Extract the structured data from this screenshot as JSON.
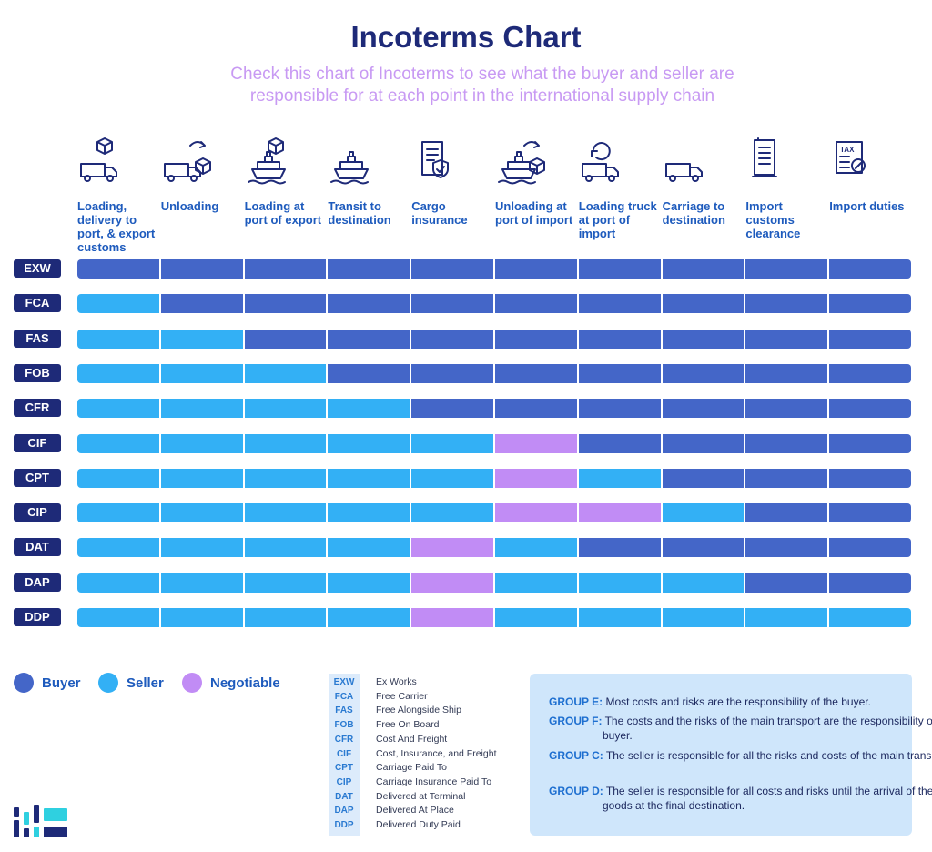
{
  "header": {
    "title": "Incoterms Chart",
    "subtitle_line1": "Check this chart of Incoterms to see what the buyer and seller are",
    "subtitle_line2": "responsible for at each point in the international supply chain"
  },
  "colors": {
    "buyer": "#4466c8",
    "seller": "#33b0f5",
    "negotiable": "#c18cf5",
    "navy": "#1e2a78"
  },
  "chart_data": {
    "type": "table",
    "title": "Incoterms Chart",
    "columns": [
      {
        "label": "Loading, delivery to port, & export customs",
        "icon": "truck-with-box-icon"
      },
      {
        "label": "Unloading",
        "icon": "truck-unloading-box-icon"
      },
      {
        "label": "Loading at port of export",
        "icon": "ship-with-box-icon"
      },
      {
        "label": "Transit to destination",
        "icon": "ship-icon"
      },
      {
        "label": "Cargo insurance",
        "icon": "insurance-document-icon"
      },
      {
        "label": "Unloading at port of import",
        "icon": "ship-unloading-box-icon"
      },
      {
        "label": "Loading truck at port of import",
        "icon": "truck-refresh-icon"
      },
      {
        "label": "Carriage to destination",
        "icon": "delivery-truck-icon"
      },
      {
        "label": "Import customs clearance",
        "icon": "customs-document-icon"
      },
      {
        "label": "Import duties",
        "icon": "tax-document-icon"
      }
    ],
    "rows": [
      {
        "term": "EXW",
        "cells": [
          "buyer",
          "buyer",
          "buyer",
          "buyer",
          "buyer",
          "buyer",
          "buyer",
          "buyer",
          "buyer",
          "buyer"
        ]
      },
      {
        "term": "FCA",
        "cells": [
          "seller",
          "buyer",
          "buyer",
          "buyer",
          "buyer",
          "buyer",
          "buyer",
          "buyer",
          "buyer",
          "buyer"
        ]
      },
      {
        "term": "FAS",
        "cells": [
          "seller",
          "seller",
          "buyer",
          "buyer",
          "buyer",
          "buyer",
          "buyer",
          "buyer",
          "buyer",
          "buyer"
        ]
      },
      {
        "term": "FOB",
        "cells": [
          "seller",
          "seller",
          "seller",
          "buyer",
          "buyer",
          "buyer",
          "buyer",
          "buyer",
          "buyer",
          "buyer"
        ]
      },
      {
        "term": "CFR",
        "cells": [
          "seller",
          "seller",
          "seller",
          "seller",
          "buyer",
          "buyer",
          "buyer",
          "buyer",
          "buyer",
          "buyer"
        ]
      },
      {
        "term": "CIF",
        "cells": [
          "seller",
          "seller",
          "seller",
          "seller",
          "seller",
          "negotiable",
          "buyer",
          "buyer",
          "buyer",
          "buyer"
        ]
      },
      {
        "term": "CPT",
        "cells": [
          "seller",
          "seller",
          "seller",
          "seller",
          "seller",
          "negotiable",
          "seller",
          "buyer",
          "buyer",
          "buyer"
        ]
      },
      {
        "term": "CIP",
        "cells": [
          "seller",
          "seller",
          "seller",
          "seller",
          "seller",
          "negotiable",
          "negotiable",
          "seller",
          "buyer",
          "buyer"
        ]
      },
      {
        "term": "DAT",
        "cells": [
          "seller",
          "seller",
          "seller",
          "seller",
          "negotiable",
          "seller",
          "buyer",
          "buyer",
          "buyer",
          "buyer"
        ]
      },
      {
        "term": "DAP",
        "cells": [
          "seller",
          "seller",
          "seller",
          "seller",
          "negotiable",
          "seller",
          "seller",
          "seller",
          "buyer",
          "buyer"
        ]
      },
      {
        "term": "DDP",
        "cells": [
          "seller",
          "seller",
          "seller",
          "seller",
          "negotiable",
          "seller",
          "seller",
          "seller",
          "seller",
          "seller"
        ]
      }
    ],
    "legend": [
      {
        "key": "buyer",
        "label": "Buyer"
      },
      {
        "key": "seller",
        "label": "Seller"
      },
      {
        "key": "negotiable",
        "label": "Negotiable"
      }
    ]
  },
  "abbreviations": [
    {
      "code": "EXW",
      "name": "Ex Works"
    },
    {
      "code": "FCA",
      "name": "Free Carrier"
    },
    {
      "code": "FAS",
      "name": "Free Alongside Ship"
    },
    {
      "code": "FOB",
      "name": "Free On Board"
    },
    {
      "code": "CFR",
      "name": "Cost And Freight"
    },
    {
      "code": "CIF",
      "name": "Cost, Insurance, and Freight"
    },
    {
      "code": "CPT",
      "name": "Carriage Paid To"
    },
    {
      "code": "CIP",
      "name": "Carriage Insurance Paid To"
    },
    {
      "code": "DAT",
      "name": "Delivered at Terminal"
    },
    {
      "code": "DAP",
      "name": "Delivered At Place"
    },
    {
      "code": "DDP",
      "name": "Delivered Duty Paid"
    }
  ],
  "groups": [
    {
      "key": "GROUP E:",
      "text": "Most costs and risks are the responsibility of the buyer."
    },
    {
      "key": "GROUP F:",
      "text": "The costs and the risks of the main transport are the responsibility of the buyer."
    },
    {
      "key": "GROUP C:",
      "text": "The seller is responsible for all the risks and costs of the main transport."
    },
    {
      "key": "GROUP D:",
      "text": "The seller is responsible for all costs and risks until the arrival of the goods at the final destination."
    }
  ]
}
